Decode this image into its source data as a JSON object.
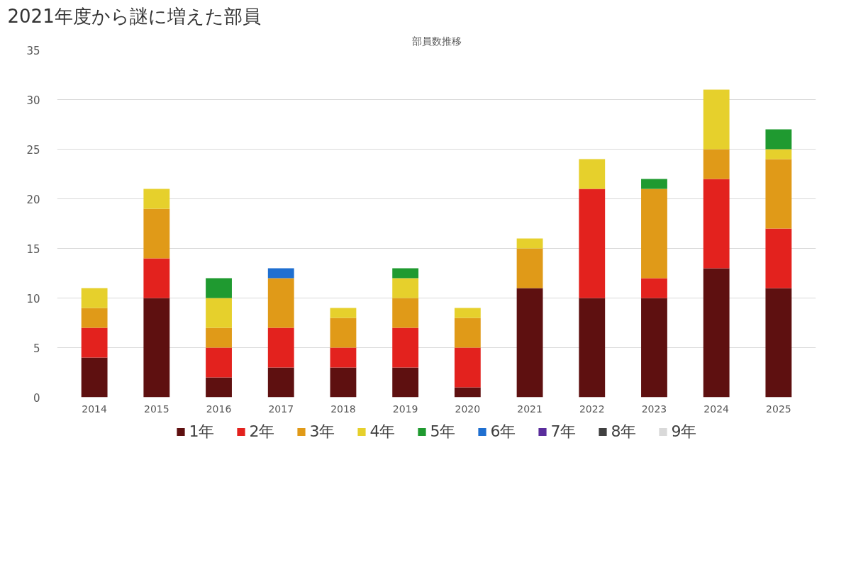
{
  "chart_data": {
    "type": "bar",
    "stacked": true,
    "title": "2021年度から謎に増えた部員",
    "subtitle": "部員数推移",
    "categories": [
      "2014",
      "2015",
      "2016",
      "2017",
      "2018",
      "2019",
      "2020",
      "2021",
      "2022",
      "2023",
      "2024",
      "2025"
    ],
    "series": [
      {
        "name": "1年",
        "color": "#5e1010",
        "values": [
          4,
          10,
          2,
          3,
          3,
          3,
          1,
          11,
          10,
          10,
          13,
          11
        ]
      },
      {
        "name": "2年",
        "color": "#e3221e",
        "values": [
          3,
          4,
          3,
          4,
          2,
          4,
          4,
          null,
          11,
          2,
          9,
          6
        ]
      },
      {
        "name": "3年",
        "color": "#e09a18",
        "values": [
          2,
          5,
          2,
          5,
          3,
          3,
          3,
          4,
          null,
          9,
          3,
          7
        ]
      },
      {
        "name": "4年",
        "color": "#e6d02c",
        "values": [
          2,
          2,
          3,
          null,
          1,
          2,
          1,
          1,
          3,
          null,
          6,
          1
        ]
      },
      {
        "name": "5年",
        "color": "#1f9a30",
        "values": [
          null,
          null,
          2,
          null,
          null,
          1,
          null,
          null,
          null,
          1,
          null,
          2
        ]
      },
      {
        "name": "6年",
        "color": "#1f6fd0",
        "values": [
          null,
          null,
          null,
          1,
          null,
          null,
          null,
          null,
          null,
          null,
          null,
          null
        ]
      },
      {
        "name": "7年",
        "color": "#5a2d9c",
        "values": [
          null,
          null,
          null,
          null,
          null,
          null,
          null,
          null,
          null,
          null,
          null,
          null
        ]
      },
      {
        "name": "8年",
        "color": "#404040",
        "values": [
          null,
          null,
          null,
          null,
          null,
          null,
          null,
          null,
          null,
          null,
          null,
          null
        ]
      },
      {
        "name": "9年",
        "color": "#d9d9d9",
        "values": [
          null,
          null,
          null,
          null,
          null,
          null,
          null,
          null,
          null,
          null,
          null,
          null
        ]
      }
    ],
    "ylim": [
      0,
      35
    ],
    "yticks": [
      0,
      5,
      10,
      15,
      20,
      25,
      30,
      35
    ],
    "grid": "y",
    "legend": "bottom"
  }
}
